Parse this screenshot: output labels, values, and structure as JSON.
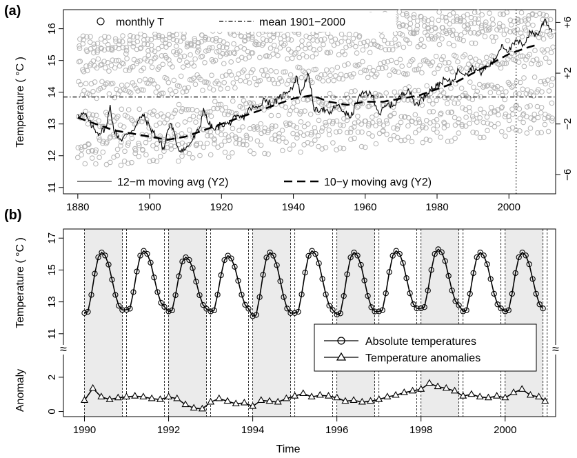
{
  "chart_data": [
    {
      "panel_label": "(a)",
      "type": "scatter+line",
      "ylabel": "Temperature ( °C )",
      "xlim": [
        1876,
        2013
      ],
      "ylim": [
        10.8,
        16.6
      ],
      "x_ticks": [
        1880,
        1900,
        1920,
        1940,
        1960,
        1980,
        2000
      ],
      "y_ticks": [
        11,
        12,
        13,
        14,
        15,
        16
      ],
      "y2_ticks": [
        {
          "label": "−6",
          "y": 11.4
        },
        {
          "label": "−2",
          "y": 13.0
        },
        {
          "label": "+2",
          "y": 14.6
        },
        {
          "label": "+6",
          "y": 16.2
        }
      ],
      "reference_line": {
        "name": "mean 1901−2000",
        "y": 13.85
      },
      "vertical_marker_year": 2002,
      "legend": [
        {
          "name": "monthly T",
          "symbol": "circle"
        },
        {
          "name": "mean 1901−2000",
          "symbol": "dotdash"
        },
        {
          "name": "12−m moving avg (Y2)",
          "symbol": "solid"
        },
        {
          "name": "10−y moving avg (Y2)",
          "symbol": "dashed"
        }
      ],
      "monthly_T": {
        "start_year": 1880,
        "end_year": 2012,
        "monthly_climatology": [
          12.0,
          12.5,
          13.3,
          14.2,
          15.0,
          15.5,
          15.7,
          15.6,
          15.0,
          14.2,
          13.2,
          12.5
        ],
        "color": "#b4b4b4"
      },
      "moving_avg_12m": {
        "name": "12−m moving avg (Y2)",
        "x": [
          1880,
          1882,
          1884,
          1886,
          1888,
          1889,
          1890,
          1892,
          1894,
          1896,
          1898,
          1900,
          1902,
          1904,
          1905,
          1906,
          1908,
          1910,
          1912,
          1914,
          1915,
          1916,
          1918,
          1920,
          1922,
          1924,
          1926,
          1928,
          1930,
          1932,
          1934,
          1936,
          1938,
          1940,
          1941,
          1942,
          1944,
          1946,
          1948,
          1950,
          1952,
          1954,
          1956,
          1958,
          1960,
          1962,
          1964,
          1966,
          1968,
          1970,
          1972,
          1974,
          1976,
          1978,
          1980,
          1982,
          1984,
          1986,
          1988,
          1990,
          1992,
          1994,
          1996,
          1998,
          2000,
          2002,
          2004,
          2006,
          2008,
          2010,
          2012
        ],
        "y": [
          13.3,
          13.3,
          12.9,
          12.7,
          12.9,
          13.6,
          12.8,
          12.5,
          12.7,
          12.9,
          13.3,
          12.9,
          12.6,
          12.2,
          12.8,
          13.0,
          12.2,
          12.2,
          12.5,
          12.9,
          13.5,
          13.1,
          12.8,
          13.0,
          13.0,
          13.2,
          13.2,
          13.5,
          13.5,
          13.8,
          13.6,
          13.8,
          14.0,
          14.2,
          14.5,
          13.9,
          14.6,
          13.4,
          13.5,
          13.3,
          13.6,
          13.4,
          13.2,
          13.8,
          14.0,
          13.9,
          13.3,
          13.6,
          13.6,
          13.9,
          14.1,
          13.6,
          13.8,
          14.1,
          14.2,
          14.4,
          14.3,
          14.7,
          14.6,
          14.8,
          14.6,
          14.8,
          15.0,
          15.5,
          15.3,
          15.6,
          15.5,
          15.9,
          15.8,
          16.3,
          15.9
        ]
      },
      "moving_avg_10y": {
        "name": "10−y moving avg (Y2)",
        "x": [
          1880,
          1885,
          1890,
          1895,
          1900,
          1905,
          1910,
          1915,
          1920,
          1925,
          1930,
          1935,
          1940,
          1945,
          1950,
          1955,
          1960,
          1965,
          1970,
          1975,
          1980,
          1985,
          1990,
          1995,
          2000,
          2005,
          2008
        ],
        "y": [
          13.2,
          13.0,
          12.8,
          12.7,
          12.6,
          12.5,
          12.6,
          12.8,
          13.0,
          13.2,
          13.4,
          13.6,
          13.8,
          13.9,
          13.7,
          13.6,
          13.7,
          13.7,
          13.8,
          13.9,
          14.1,
          14.3,
          14.6,
          14.9,
          15.2,
          15.4,
          15.5
        ]
      }
    },
    {
      "panel_label": "(b)",
      "type": "line",
      "xlabel": "Time",
      "ylabel_top": "Temperature ( °C )",
      "ylabel_bottom": "Anomaly",
      "xlim": [
        1989.5,
        2001.2
      ],
      "x_ticks": [
        1990,
        1992,
        1994,
        1996,
        1998,
        2000
      ],
      "temperature_axis": {
        "ylim": [
          10.3,
          17.4
        ],
        "ticks": [
          11,
          13,
          15,
          17
        ]
      },
      "anomaly_axis": {
        "ylim": [
          -0.3,
          2.6
        ],
        "ticks": [
          0,
          2
        ]
      },
      "axis_break_symbol": "≈",
      "shaded_years": [
        1990,
        1992,
        1994,
        1996,
        1998,
        2000
      ],
      "legend": [
        {
          "name": "Absolute temperatures",
          "symbol": "circle"
        },
        {
          "name": "Temperature anomalies",
          "symbol": "triangle"
        }
      ],
      "series": [
        {
          "name": "Absolute temperatures",
          "start_year": 1990,
          "years": [
            1990,
            1991,
            1992,
            1993,
            1994,
            1995,
            1996,
            1997,
            1998,
            1999,
            2000
          ],
          "annual_min": [
            12.3,
            12.5,
            12.4,
            12.4,
            12.1,
            12.3,
            12.2,
            12.4,
            12.6,
            12.4,
            12.4
          ],
          "annual_peak": [
            16.1,
            16.2,
            15.8,
            15.9,
            16.1,
            16.2,
            16.1,
            16.2,
            16.3,
            16.1,
            16.1
          ],
          "monthly_shape": [
            0.0,
            0.02,
            0.3,
            0.65,
            0.92,
            1.0,
            0.95,
            0.8,
            0.55,
            0.3,
            0.12,
            0.05
          ]
        },
        {
          "name": "Temperature anomalies",
          "x": [
            1990.0,
            1990.2,
            1990.4,
            1990.6,
            1990.8,
            1991.0,
            1991.2,
            1991.4,
            1991.6,
            1991.8,
            1992.0,
            1992.2,
            1992.4,
            1992.6,
            1992.8,
            1993.0,
            1993.2,
            1993.4,
            1993.6,
            1993.8,
            1994.0,
            1994.2,
            1994.4,
            1994.6,
            1994.8,
            1995.0,
            1995.2,
            1995.4,
            1995.6,
            1995.8,
            1996.0,
            1996.2,
            1996.4,
            1996.6,
            1996.8,
            1997.0,
            1997.2,
            1997.4,
            1997.6,
            1997.8,
            1998.0,
            1998.2,
            1998.4,
            1998.6,
            1998.8,
            1999.0,
            1999.2,
            1999.4,
            1999.6,
            1999.8,
            2000.0,
            2000.2,
            2000.4,
            2000.6,
            2000.8,
            2000.95
          ],
          "y": [
            0.65,
            1.35,
            0.85,
            0.7,
            0.8,
            0.85,
            0.9,
            0.85,
            0.75,
            0.7,
            0.85,
            0.75,
            0.4,
            0.2,
            0.15,
            0.55,
            0.75,
            0.6,
            0.45,
            0.5,
            0.3,
            0.65,
            0.6,
            0.55,
            0.75,
            0.9,
            1.05,
            0.85,
            0.95,
            0.9,
            0.8,
            0.6,
            0.65,
            0.55,
            0.6,
            0.7,
            0.85,
            0.95,
            1.1,
            1.2,
            1.3,
            1.65,
            1.45,
            1.35,
            1.2,
            0.9,
            1.0,
            0.85,
            0.8,
            0.9,
            0.8,
            1.1,
            1.3,
            0.95,
            0.85,
            0.6
          ]
        }
      ]
    }
  ]
}
